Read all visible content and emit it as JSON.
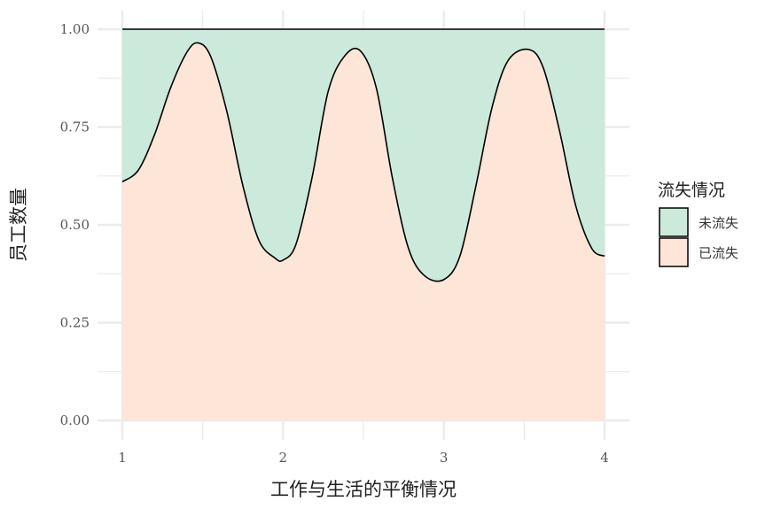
{
  "chart_data": {
    "type": "area",
    "stacked_proportion": true,
    "xlabel": "工作与生活的平衡情况",
    "ylabel": "员工数量",
    "xlim": [
      1,
      4
    ],
    "ylim": [
      0,
      1
    ],
    "x_ticks": [
      "1",
      "2",
      "3",
      "4"
    ],
    "y_ticks": [
      "0.00",
      "0.25",
      "0.50",
      "0.75",
      "1.00"
    ],
    "grid": true,
    "legend": {
      "title": "流失情况",
      "position": "right",
      "entries": [
        "未流失",
        "已流失"
      ]
    },
    "series": [
      {
        "name": "未流失",
        "color": "#cbeadb",
        "position": "top"
      },
      {
        "name": "已流失",
        "color": "#fde5d8",
        "position": "bottom"
      }
    ],
    "boundary": {
      "x": [
        1.0,
        1.1,
        1.2,
        1.3,
        1.4,
        1.47,
        1.55,
        1.65,
        1.75,
        1.85,
        1.95,
        2.0,
        2.08,
        2.18,
        2.28,
        2.38,
        2.48,
        2.58,
        2.68,
        2.78,
        2.88,
        3.0,
        3.1,
        3.2,
        3.3,
        3.4,
        3.53,
        3.62,
        3.72,
        3.82,
        3.92,
        4.0
      ],
      "y": [
        0.61,
        0.64,
        0.73,
        0.85,
        0.94,
        0.965,
        0.93,
        0.79,
        0.6,
        0.46,
        0.415,
        0.41,
        0.45,
        0.62,
        0.84,
        0.93,
        0.945,
        0.85,
        0.62,
        0.44,
        0.37,
        0.36,
        0.42,
        0.6,
        0.8,
        0.92,
        0.948,
        0.9,
        0.74,
        0.55,
        0.44,
        0.42
      ]
    },
    "top_line": 1.0
  }
}
